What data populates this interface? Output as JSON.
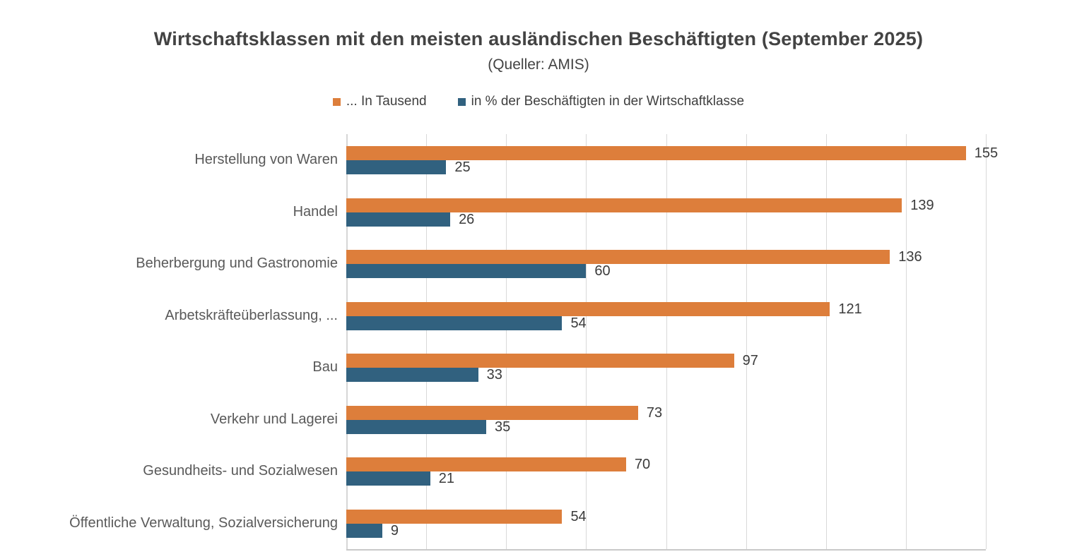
{
  "chart_data": {
    "type": "bar",
    "orientation": "horizontal",
    "title": "Wirtschaftsklassen mit den meisten ausländischen Beschäftigten (September 2025)",
    "subtitle": "(Queller: AMIS)",
    "categories": [
      "Herstellung von Waren",
      "Handel",
      "Beherbergung und Gastronomie",
      "Arbetskräfteüberlassung, ...",
      "Bau",
      "Verkehr und Lagerei",
      "Gesundheits- und Sozialwesen",
      "Öffentliche Verwaltung, Sozialversicherung"
    ],
    "series": [
      {
        "name": "... In Tausend",
        "color": "#dd7e3b",
        "values": [
          155,
          139,
          136,
          121,
          97,
          73,
          70,
          54
        ]
      },
      {
        "name": "in % der Beschäftigten in der Wirtschaftklasse",
        "color": "#31617f",
        "values": [
          25,
          26,
          60,
          54,
          33,
          35,
          21,
          9
        ]
      }
    ],
    "xlim": [
      0,
      160
    ],
    "grid_step": 20,
    "grid": true,
    "legend_position": "top",
    "value_labels": true,
    "axis_tick_labels_shown": false
  },
  "colors": {
    "background": "#ffffff",
    "title_text": "#434343",
    "category_label_text": "#595959",
    "value_label_text": "#3b3b3b",
    "gridline": "#d9d9d9",
    "axis_line": "#c9c9c9",
    "series_tausend": "#dd7e3b",
    "series_percent": "#31617f"
  }
}
